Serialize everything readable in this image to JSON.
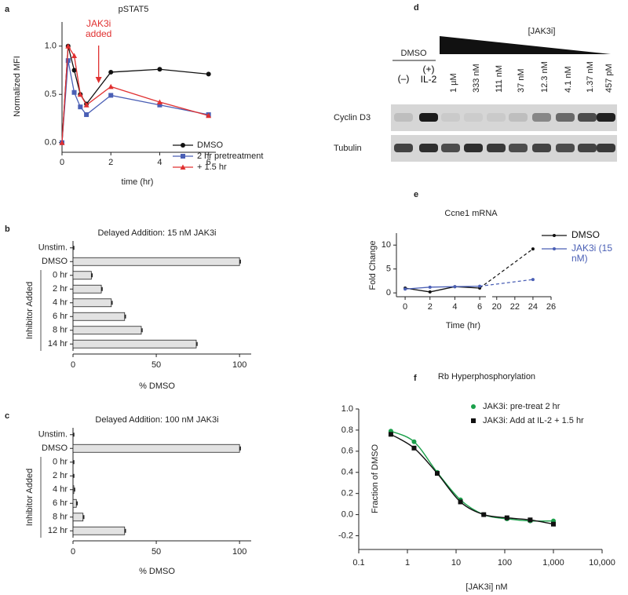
{
  "chart_data": [
    {
      "type": "line",
      "panel": "a",
      "title": "pSTAT5",
      "xlabel": "time (hr)",
      "ylabel": "Normalized MFI",
      "annotation": "JAK3i added",
      "annotation_x": 1.5,
      "annotation_color": "#e03030",
      "x": [
        0,
        0.25,
        0.5,
        0.75,
        1,
        2,
        4,
        6
      ],
      "xlim": [
        0,
        6.3
      ],
      "xticks": [
        0,
        2,
        4,
        6
      ],
      "ylim": [
        -0.1,
        1.25
      ],
      "yticks": [
        {
          "value": 0,
          "label": "0.0"
        },
        {
          "value": 0.5,
          "label": "0.5"
        },
        {
          "value": 1,
          "label": "1.0"
        }
      ],
      "legend": "lower right",
      "series": [
        {
          "name": "DMSO",
          "color": "#111111",
          "marker": "circle",
          "values": [
            0,
            1.0,
            0.75,
            0.5,
            0.4,
            0.73,
            0.76,
            0.71
          ]
        },
        {
          "name": "2 hr pretreatment",
          "color": "#4a5fb5",
          "marker": "square",
          "values": [
            0,
            0.85,
            0.52,
            0.37,
            0.29,
            0.49,
            0.39,
            0.29
          ]
        },
        {
          "name": "+ 1.5 hr",
          "color": "#e03030",
          "marker": "triangle",
          "values": [
            0,
            1.0,
            0.9,
            0.5,
            0.39,
            0.58,
            0.42,
            0.28
          ]
        }
      ]
    },
    {
      "type": "hbar",
      "panel": "b",
      "title": "Delayed Addition: 15 nM JAK3i",
      "xlabel": "% DMSO",
      "group_label": "Inhibitor Added",
      "color": "#e2e2e2",
      "categories": [
        "Unstim.",
        "DMSO",
        "0 hr",
        "2 hr",
        "4 hr",
        "6 hr",
        "8 hr",
        "14 hr"
      ],
      "values": [
        0,
        100,
        11,
        17,
        23,
        31,
        41,
        74
      ],
      "xlim": [
        0,
        107
      ],
      "xticks": [
        0,
        50,
        100
      ]
    },
    {
      "type": "hbar",
      "panel": "c",
      "title": "Delayed Addition: 100 nM JAK3i",
      "xlabel": "% DMSO",
      "group_label": "Inhibitor Added",
      "color": "#e2e2e2",
      "categories": [
        "Unstim.",
        "DMSO",
        "0 hr",
        "2 hr",
        "4 hr",
        "6 hr",
        "8 hr",
        "12 hr"
      ],
      "values": [
        0,
        100,
        0,
        0,
        0.5,
        2,
        6,
        31
      ],
      "xlim": [
        0,
        107
      ],
      "xticks": [
        0,
        50,
        100
      ]
    },
    {
      "type": "line",
      "panel": "e",
      "title": "Ccne1 mRNA",
      "xlabel": "Time (hr)",
      "ylabel": "Fold Change",
      "legend": "upper right",
      "x": [
        0,
        2,
        4,
        6,
        24
      ],
      "xlim": [
        -0.7,
        26
      ],
      "xbreak": [
        6.5,
        19.5
      ],
      "xticks": [
        0,
        2,
        4,
        6,
        20,
        22,
        24,
        26
      ],
      "ylim": [
        -0.8,
        12.5
      ],
      "yticks": [
        0,
        5,
        10
      ],
      "series": [
        {
          "name": "DMSO",
          "color": "#111111",
          "marker": "dot",
          "values": [
            1,
            0.2,
            1.3,
            1.0,
            9.2
          ]
        },
        {
          "name": "JAK3i (15 nM)",
          "color": "#4a5fb5",
          "marker": "dot",
          "values": [
            0.8,
            1.2,
            1.3,
            1.4,
            2.8
          ]
        }
      ]
    },
    {
      "type": "scatter",
      "panel": "f",
      "title": "Rb Hyperphosphorylation",
      "xlabel": "[JAK3i] nM",
      "ylabel": "Fraction of DMSO",
      "xscale": "log",
      "fit_line": true,
      "legend": "upper right",
      "x": [
        0.457,
        1.37,
        4.1,
        12.3,
        37,
        111,
        333,
        1000
      ],
      "xlim": [
        0.1,
        10000
      ],
      "xticks": [
        0.1,
        1,
        10,
        100,
        {
          "value": 1000,
          "label": "1,000"
        },
        {
          "value": 10000,
          "label": "10,000"
        }
      ],
      "ylim": [
        -0.33,
        1.0
      ],
      "yticks": [
        {
          "value": 1,
          "label": "1.0"
        },
        0.8,
        0.6,
        0.4,
        0.2,
        {
          "value": 0,
          "label": "0.0"
        },
        -0.2
      ],
      "series": [
        {
          "name": "JAK3i: pre-treat 2 hr",
          "color": "#1aa04a",
          "marker": "circle",
          "values": [
            0.79,
            0.69,
            0.4,
            0.14,
            0.0,
            -0.04,
            -0.06,
            -0.06
          ]
        },
        {
          "name": "JAK3i: Add at IL-2 + 1.5 hr",
          "color": "#111111",
          "marker": "square",
          "values": [
            0.76,
            0.63,
            0.39,
            0.12,
            0.0,
            -0.03,
            -0.05,
            -0.09
          ]
        }
      ]
    }
  ],
  "blot": {
    "panel": "d",
    "title": "[JAK3i]",
    "control_label": "DMSO",
    "lanes": [
      "(–)",
      "(+) IL-2",
      "1 µM",
      "333 nM",
      "111 nM",
      "37 nM",
      "12.3 nM",
      "4.1 nM",
      "1.37 nM",
      "457 pM"
    ],
    "rows": [
      "Cyclin D3",
      "Tubulin"
    ]
  }
}
